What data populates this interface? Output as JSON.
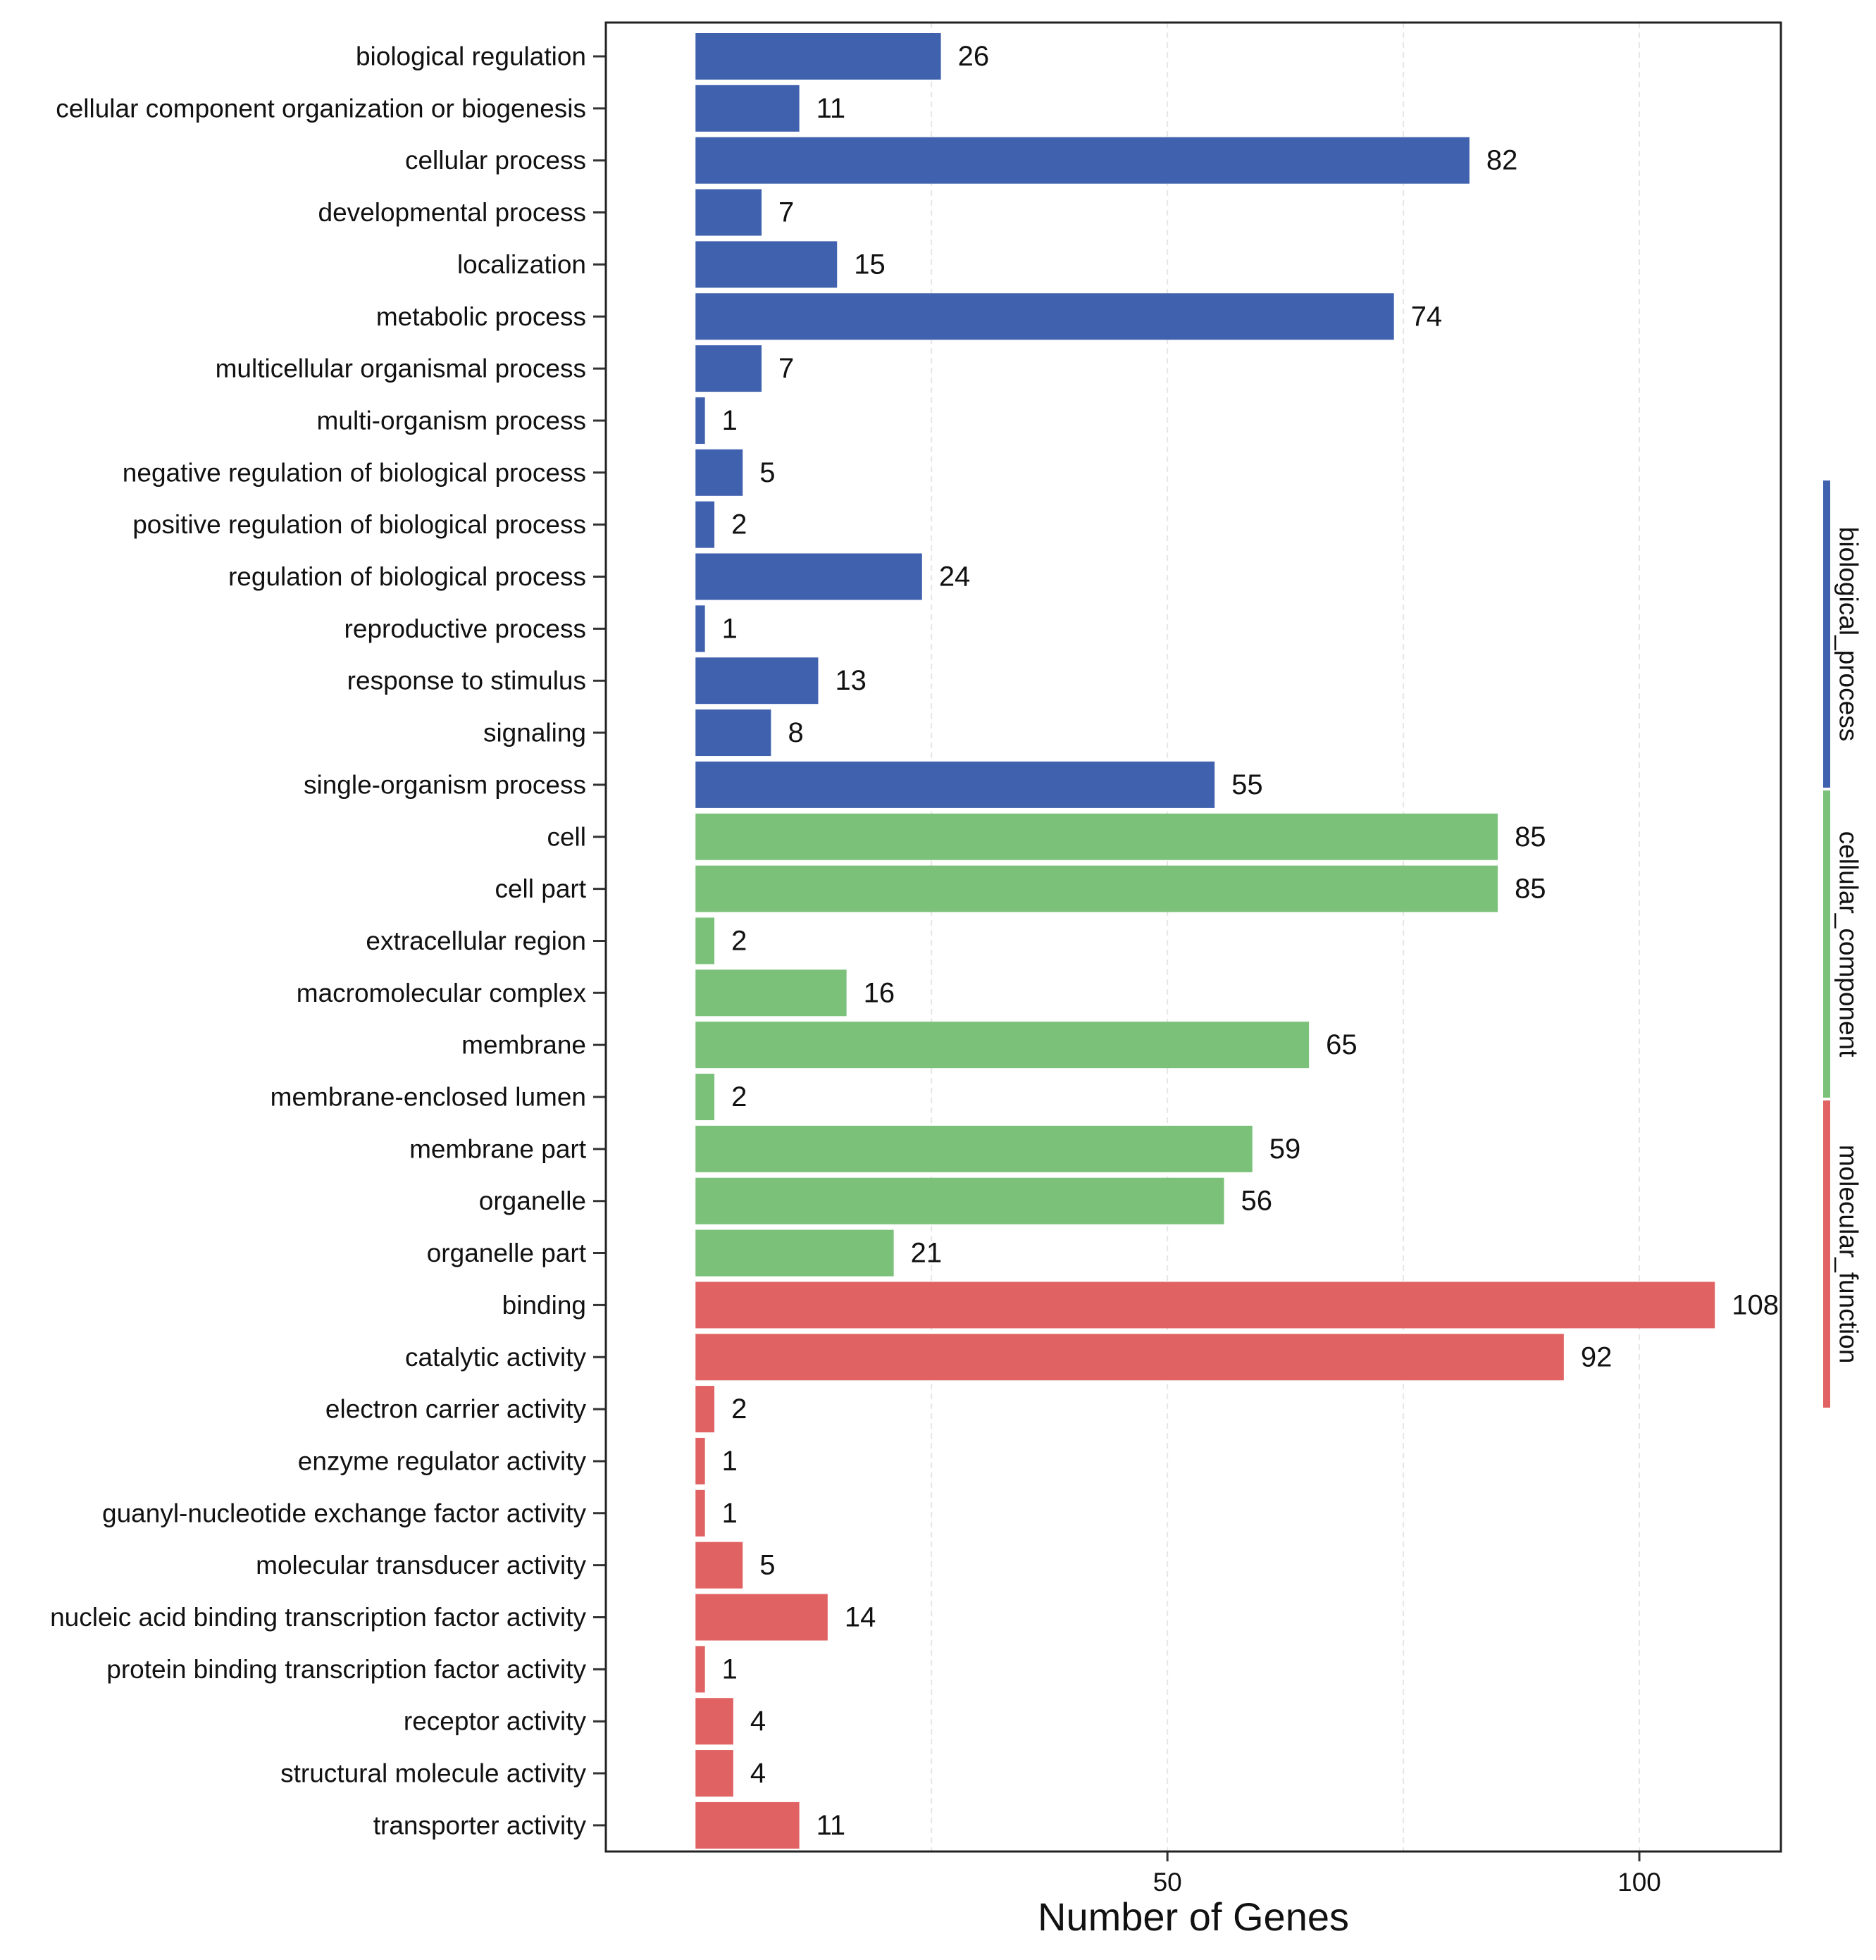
{
  "chart_data": {
    "type": "bar",
    "orientation": "horizontal",
    "xlabel": "Number of Genes",
    "xticks": [
      50,
      100
    ],
    "xlim": [
      -9.5,
      115
    ],
    "grid": true,
    "groups": [
      {
        "name": "biological_process",
        "color": "#4062ae"
      },
      {
        "name": "cellular_component",
        "color": "#7bc17a"
      },
      {
        "name": "molecular_function",
        "color": "#e06262"
      }
    ],
    "bars": [
      {
        "label": "biological regulation",
        "value": 26,
        "group": "biological_process"
      },
      {
        "label": "cellular component organization or biogenesis",
        "value": 11,
        "group": "biological_process"
      },
      {
        "label": "cellular process",
        "value": 82,
        "group": "biological_process"
      },
      {
        "label": "developmental process",
        "value": 7,
        "group": "biological_process"
      },
      {
        "label": "localization",
        "value": 15,
        "group": "biological_process"
      },
      {
        "label": "metabolic process",
        "value": 74,
        "group": "biological_process"
      },
      {
        "label": "multicellular organismal process",
        "value": 7,
        "group": "biological_process"
      },
      {
        "label": "multi-organism process",
        "value": 1,
        "group": "biological_process"
      },
      {
        "label": "negative regulation of biological process",
        "value": 5,
        "group": "biological_process"
      },
      {
        "label": "positive regulation of biological process",
        "value": 2,
        "group": "biological_process"
      },
      {
        "label": "regulation of biological process",
        "value": 24,
        "group": "biological_process"
      },
      {
        "label": "reproductive process",
        "value": 1,
        "group": "biological_process"
      },
      {
        "label": "response to stimulus",
        "value": 13,
        "group": "biological_process"
      },
      {
        "label": "signaling",
        "value": 8,
        "group": "biological_process"
      },
      {
        "label": "single-organism process",
        "value": 55,
        "group": "biological_process"
      },
      {
        "label": "cell",
        "value": 85,
        "group": "cellular_component"
      },
      {
        "label": "cell part",
        "value": 85,
        "group": "cellular_component"
      },
      {
        "label": "extracellular region",
        "value": 2,
        "group": "cellular_component"
      },
      {
        "label": "macromolecular complex",
        "value": 16,
        "group": "cellular_component"
      },
      {
        "label": "membrane",
        "value": 65,
        "group": "cellular_component"
      },
      {
        "label": "membrane-enclosed lumen",
        "value": 2,
        "group": "cellular_component"
      },
      {
        "label": "membrane part",
        "value": 59,
        "group": "cellular_component"
      },
      {
        "label": "organelle",
        "value": 56,
        "group": "cellular_component"
      },
      {
        "label": "organelle part",
        "value": 21,
        "group": "cellular_component"
      },
      {
        "label": "binding",
        "value": 108,
        "group": "molecular_function"
      },
      {
        "label": "catalytic activity",
        "value": 92,
        "group": "molecular_function"
      },
      {
        "label": "electron carrier activity",
        "value": 2,
        "group": "molecular_function"
      },
      {
        "label": "enzyme regulator activity",
        "value": 1,
        "group": "molecular_function"
      },
      {
        "label": "guanyl-nucleotide exchange factor activity",
        "value": 1,
        "group": "molecular_function"
      },
      {
        "label": "molecular transducer activity",
        "value": 5,
        "group": "molecular_function"
      },
      {
        "label": "nucleic acid binding transcription factor activity",
        "value": 14,
        "group": "molecular_function"
      },
      {
        "label": "protein binding transcription factor activity",
        "value": 1,
        "group": "molecular_function"
      },
      {
        "label": "receptor activity",
        "value": 4,
        "group": "molecular_function"
      },
      {
        "label": "structural molecule activity",
        "value": 4,
        "group": "molecular_function"
      },
      {
        "label": "transporter activity",
        "value": 11,
        "group": "molecular_function"
      }
    ]
  }
}
